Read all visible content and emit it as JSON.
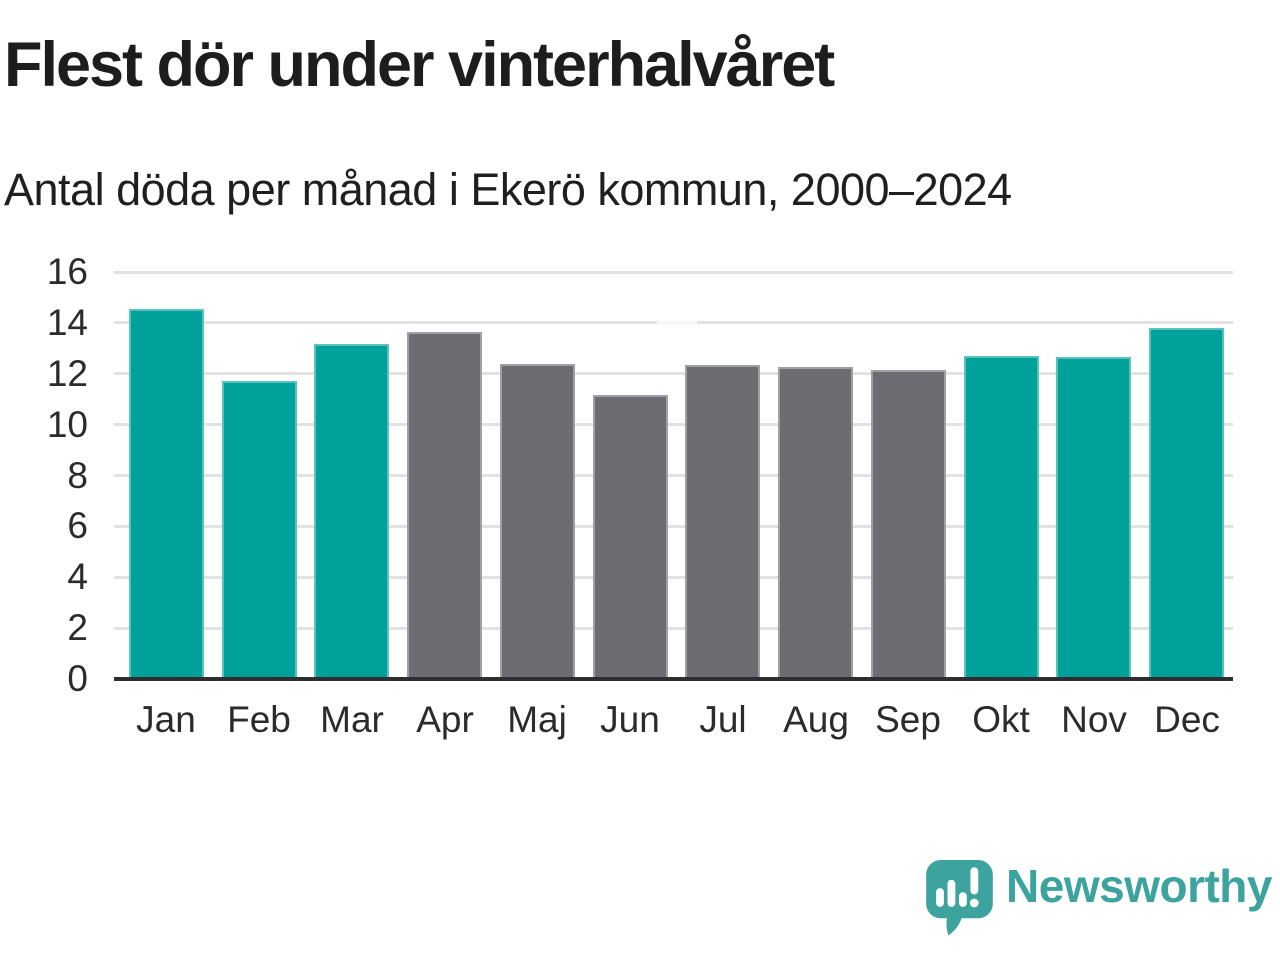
{
  "header": {
    "title": "Flest dör under vinterhalvåret",
    "subtitle": "Antal döda per månad i Ekerö kommun, 2000–2024"
  },
  "chart_data": {
    "type": "bar",
    "title": "Flest dör under vinterhalvåret",
    "subtitle": "Antal döda per månad i Ekerö kommun, 2000–2024",
    "categories": [
      "Jan",
      "Feb",
      "Mar",
      "Apr",
      "Maj",
      "Jun",
      "Jul",
      "Aug",
      "Sep",
      "Okt",
      "Nov",
      "Dec"
    ],
    "values": [
      14.55,
      11.7,
      13.15,
      13.65,
      12.4,
      11.15,
      12.35,
      12.25,
      12.15,
      12.7,
      12.65,
      13.8
    ],
    "bar_roles": [
      "highlight",
      "highlight",
      "highlight",
      "base",
      "base",
      "base",
      "base",
      "base",
      "base",
      "highlight",
      "highlight",
      "highlight"
    ],
    "colors": {
      "highlight": "#00a19a",
      "base": "#6e6c73"
    },
    "xlabel": "",
    "ylabel": "",
    "ylim": [
      0,
      16
    ],
    "yticks": [
      0,
      2,
      4,
      6,
      8,
      10,
      12,
      14,
      16
    ],
    "grid": true,
    "legend": "none"
  },
  "footer": {
    "brand": "Newsworthy",
    "brand_color": "#3da39e"
  }
}
